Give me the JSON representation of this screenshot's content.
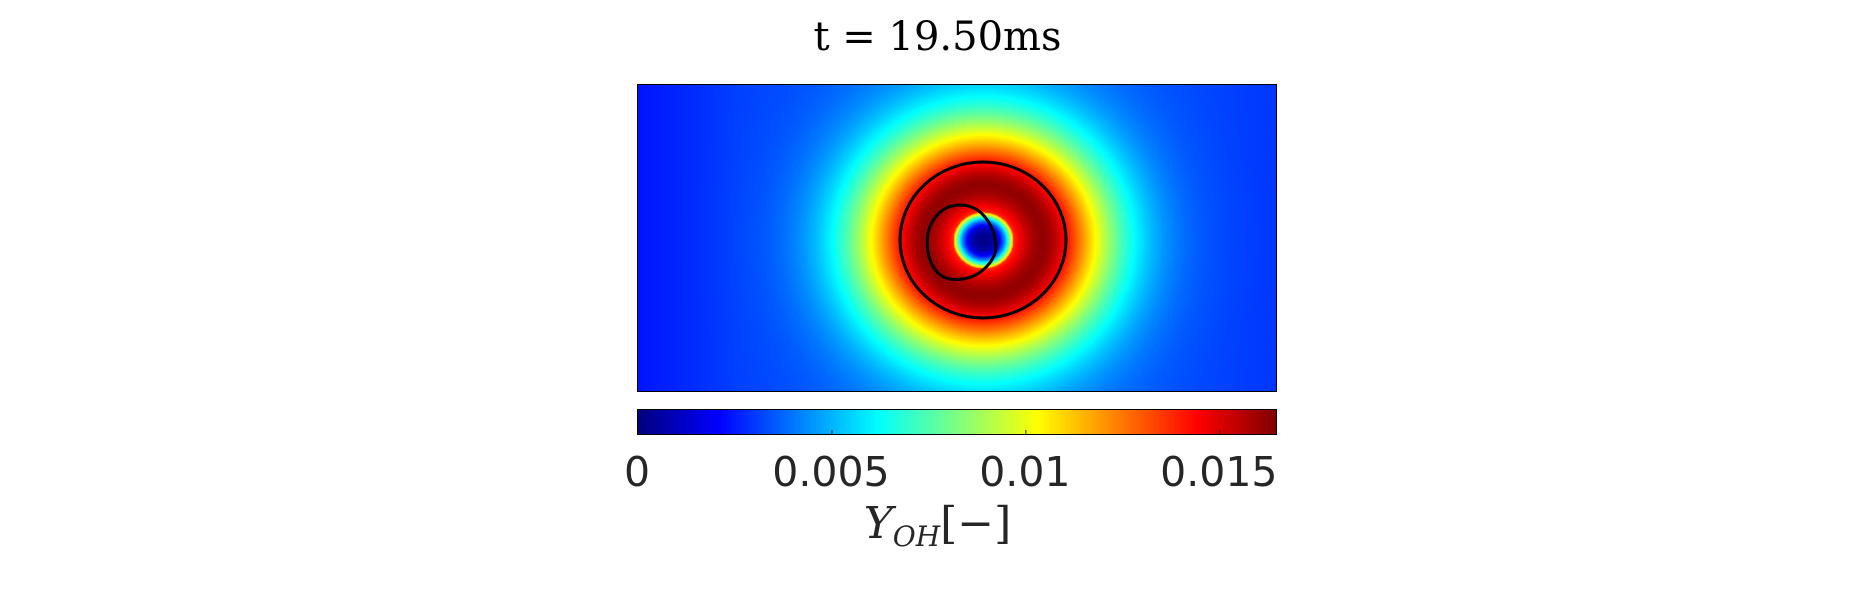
{
  "chart_data": {
    "type": "heatmap",
    "title": "t = 19.50ms",
    "colormap": "jet",
    "clim": [
      0,
      0.0165
    ],
    "colorbar": {
      "orientation": "horizontal",
      "location": "bottom",
      "ticks": [
        0,
        0.005,
        0.01,
        0.015
      ],
      "tick_labels": [
        "0",
        "0.005",
        "0.01",
        "0.015"
      ],
      "label_symbol": "Y",
      "label_subscript": "OH",
      "label_unit": "[−]"
    },
    "contours": {
      "count": 2,
      "color": "#000000"
    }
  }
}
